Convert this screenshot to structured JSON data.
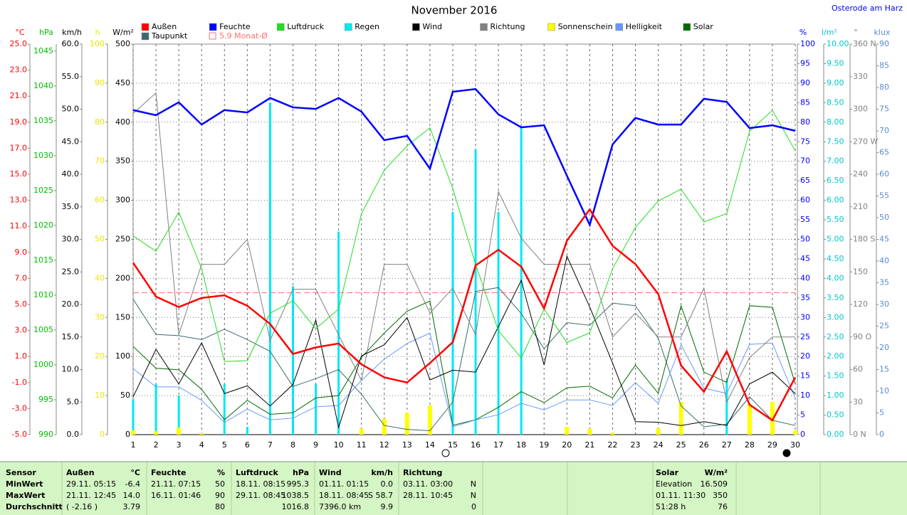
{
  "chart_data": {
    "type": "line",
    "title": "November 2016",
    "station": "Osterode am Harz",
    "x": [
      1,
      2,
      3,
      4,
      5,
      6,
      7,
      8,
      9,
      10,
      11,
      12,
      13,
      14,
      15,
      16,
      17,
      18,
      19,
      20,
      21,
      22,
      23,
      24,
      25,
      26,
      27,
      28,
      29,
      30
    ],
    "xlim": [
      1,
      30
    ],
    "xticks": [
      1,
      2,
      3,
      4,
      5,
      6,
      7,
      8,
      9,
      10,
      11,
      12,
      13,
      14,
      15,
      16,
      17,
      18,
      19,
      20,
      21,
      22,
      23,
      24,
      25,
      26,
      27,
      28,
      29,
      30
    ],
    "grid": true,
    "axes": [
      {
        "unit": "°C",
        "side": "left",
        "color": "#ff0000",
        "lim": [
          -5,
          25
        ],
        "ticks": [
          {
            "value": -5,
            "label": "-5.0"
          },
          {
            "value": -3,
            "label": "-3.0"
          },
          {
            "value": -1,
            "label": "-1.0"
          },
          {
            "value": 1,
            "label": "1.0"
          },
          {
            "value": 3,
            "label": "3.0"
          },
          {
            "value": 5,
            "label": "5.0"
          },
          {
            "value": 7,
            "label": "7.0"
          },
          {
            "value": 9,
            "label": "9.0"
          },
          {
            "value": 11,
            "label": "11.0"
          },
          {
            "value": 13,
            "label": "13.0"
          },
          {
            "value": 15,
            "label": "15.0"
          },
          {
            "value": 17,
            "label": "17.0"
          },
          {
            "value": 19,
            "label": "19.0"
          },
          {
            "value": 21,
            "label": "21.0"
          },
          {
            "value": 23,
            "label": "23.0"
          },
          {
            "value": 25,
            "label": "25.0"
          }
        ]
      },
      {
        "unit": "hPa",
        "side": "left",
        "color": "#00c000",
        "lim": [
          990,
          1046
        ],
        "ticks": [
          990,
          995,
          1000,
          1005,
          1010,
          1015,
          1020,
          1025,
          1030,
          1035,
          1040,
          1045
        ]
      },
      {
        "unit": "km/h",
        "side": "left",
        "color": "#000000",
        "lim": [
          0,
          60
        ],
        "ticks": [
          {
            "value": 0,
            "label": "0.0"
          },
          {
            "value": 5,
            "label": "5.0"
          },
          {
            "value": 10,
            "label": "10.0"
          },
          {
            "value": 15,
            "label": "15.0"
          },
          {
            "value": 20,
            "label": "20.0"
          },
          {
            "value": 25,
            "label": "25.0"
          },
          {
            "value": 30,
            "label": "30.0"
          },
          {
            "value": 35,
            "label": "35.0"
          },
          {
            "value": 40,
            "label": "40.0"
          },
          {
            "value": 45,
            "label": "45.0"
          },
          {
            "value": 50,
            "label": "50.0"
          },
          {
            "value": 55,
            "label": "55.0"
          },
          {
            "value": 60,
            "label": "60.0"
          }
        ]
      },
      {
        "unit": "h",
        "side": "left",
        "color": "#e8e800",
        "lim": [
          0,
          100
        ],
        "ticks": [
          0,
          10,
          20,
          30,
          40,
          50,
          60,
          70,
          80,
          90,
          100
        ]
      },
      {
        "unit": "W/m²",
        "side": "left",
        "color": "#000000",
        "lim": [
          0,
          500
        ],
        "ticks": [
          0,
          50,
          100,
          150,
          200,
          250,
          300,
          350,
          400,
          450,
          500
        ],
        "grid": true
      },
      {
        "unit": "%",
        "side": "right",
        "color": "#0000ff",
        "lim": [
          0,
          100
        ],
        "ticks": [
          0,
          5,
          10,
          15,
          20,
          25,
          30,
          35,
          40,
          45,
          50,
          55,
          60,
          65,
          70,
          75,
          80,
          85,
          90,
          95,
          100
        ]
      },
      {
        "unit": "l/m²",
        "side": "right",
        "color": "#00c8c8",
        "lim": [
          0,
          10
        ],
        "ticks": [
          {
            "value": 0,
            "label": "0.00"
          },
          {
            "value": 0.5,
            "label": "0.50"
          },
          {
            "value": 1,
            "label": "1.00"
          },
          {
            "value": 1.5,
            "label": "1.50"
          },
          {
            "value": 2,
            "label": "2.00"
          },
          {
            "value": 2.5,
            "label": "2.50"
          },
          {
            "value": 3,
            "label": "3.00"
          },
          {
            "value": 3.5,
            "label": "3.50"
          },
          {
            "value": 4,
            "label": "4.00"
          },
          {
            "value": 4.5,
            "label": "4.50"
          },
          {
            "value": 5,
            "label": "5.00"
          },
          {
            "value": 5.5,
            "label": "5.50"
          },
          {
            "value": 6,
            "label": "6.00"
          },
          {
            "value": 6.5,
            "label": "6.50"
          },
          {
            "value": 7,
            "label": "7.00"
          },
          {
            "value": 7.5,
            "label": "7.50"
          },
          {
            "value": 8,
            "label": "8.00"
          },
          {
            "value": 8.5,
            "label": "8.50"
          },
          {
            "value": 9,
            "label": "9.00"
          },
          {
            "value": 9.5,
            "label": "9.50"
          },
          {
            "value": 10,
            "label": "10.00"
          }
        ]
      },
      {
        "unit": "°",
        "side": "right",
        "color": "#808080",
        "lim": [
          0,
          360
        ],
        "ticks": [
          {
            "value": 0,
            "label": "0 N"
          },
          30,
          60,
          {
            "value": 90,
            "label": "90 O"
          },
          120,
          150,
          {
            "value": 180,
            "label": "180 S"
          },
          210,
          240,
          {
            "value": 270,
            "label": "270 W"
          },
          300,
          330,
          {
            "value": 360,
            "label": "360 N"
          }
        ]
      },
      {
        "unit": "klux",
        "side": "right",
        "color": "#5a8ad8",
        "lim": [
          0,
          90
        ],
        "ticks": [
          0,
          5,
          10,
          15,
          20,
          25,
          30,
          35,
          40,
          45,
          50,
          55,
          60,
          65,
          70,
          75,
          80,
          85,
          90
        ]
      }
    ],
    "series": [
      {
        "name": "Außen",
        "color": "#ff0000",
        "axis": 0,
        "style": "line",
        "width": 2.5,
        "values": [
          8.2,
          5.6,
          4.8,
          5.5,
          5.7,
          4.9,
          3.5,
          1.2,
          1.7,
          2.0,
          0.4,
          -0.6,
          -1.0,
          0.5,
          2.1,
          8.0,
          9.2,
          7.9,
          4.7,
          9.9,
          12.3,
          9.5,
          8.1,
          5.8,
          0.3,
          -1.7,
          1.4,
          -2.7,
          -3.9,
          -0.6
        ]
      },
      {
        "name": "Feuchte",
        "color": "#0000ff",
        "axis": 5,
        "style": "line",
        "width": 2.5,
        "values": [
          83.1,
          81.8,
          85.1,
          79.4,
          83.1,
          82.5,
          86.2,
          83.8,
          83.4,
          86.2,
          82.7,
          75.4,
          76.5,
          68.1,
          87.8,
          88.5,
          82.0,
          78.7,
          79.2,
          66.3,
          53.7,
          74.3,
          81.1,
          79.4,
          79.4,
          86.0,
          85.2,
          78.5,
          79.2,
          77.8
        ]
      },
      {
        "name": "Luftdruck",
        "color": "#22dd22",
        "axis": 1,
        "style": "line",
        "width": 1,
        "values": [
          1018.5,
          1016.3,
          1021.9,
          1013.8,
          1000.5,
          1000.6,
          1007.4,
          1009.2,
          1005.2,
          1008.0,
          1021.7,
          1027.9,
          1031.4,
          1034.0,
          1025.3,
          1014.4,
          1004.9,
          1001.0,
          1008.0,
          1003.2,
          1004.6,
          1013.8,
          1019.7,
          1023.5,
          1025.2,
          1020.5,
          1021.7,
          1033.5,
          1036.5,
          1030.7
        ]
      },
      {
        "name": "Regen",
        "color": "#00e8f0",
        "axis": 6,
        "style": "bar",
        "width": 3,
        "values": [
          0.9,
          1.3,
          1.0,
          0,
          1.3,
          0.2,
          8.5,
          3.8,
          1.3,
          5.2,
          0,
          0,
          0,
          0,
          5.7,
          7.3,
          5.7,
          7.9,
          0,
          0,
          0,
          0,
          0,
          0,
          0,
          0,
          1.4,
          0,
          0,
          0
        ]
      },
      {
        "name": "Wind",
        "color": "#000000",
        "axis": 2,
        "style": "line",
        "width": 1,
        "values": [
          5.8,
          13.1,
          7.8,
          14.1,
          6.3,
          7.5,
          4.4,
          7.7,
          17.6,
          1.1,
          12.1,
          13.8,
          18.0,
          8.4,
          9.9,
          9.6,
          16.6,
          23.7,
          10.7,
          27.4,
          19.6,
          11.0,
          2.0,
          1.9,
          1.4,
          2.0,
          1.4,
          7.8,
          9.6,
          6.3
        ]
      },
      {
        "name": "Richtung",
        "color": "#808080",
        "axis": 7,
        "style": "line",
        "width": 1,
        "values": [
          296,
          315,
          92,
          157,
          157,
          180,
          87,
          134,
          134,
          92,
          50,
          157,
          157,
          112,
          135,
          92,
          224,
          181,
          157,
          157,
          157,
          90,
          112,
          90,
          90,
          135,
          30,
          71,
          90,
          90
        ]
      },
      {
        "name": "Sonnenschein",
        "color": "#ffff00",
        "axis": 3,
        "style": "bar",
        "width": 6,
        "values": [
          1.1,
          0.9,
          1.8,
          0.4,
          0,
          0,
          0,
          0,
          0,
          0,
          1.5,
          4.0,
          5.6,
          7.5,
          0,
          0,
          0,
          0,
          0,
          2.0,
          1.5,
          0.5,
          0,
          1.6,
          8.4,
          0,
          0,
          7.8,
          8.4,
          1.1
        ]
      },
      {
        "name": "Helligkeit",
        "color": "#6699ff",
        "axis": 8,
        "style": "line",
        "width": 1,
        "values": [
          15.2,
          11.0,
          11.0,
          7.9,
          2.8,
          5.9,
          3.4,
          3.8,
          6.4,
          6.7,
          12.5,
          17.4,
          21.0,
          23.4,
          1.8,
          3.4,
          4.6,
          7.2,
          5.7,
          8.0,
          8.0,
          6.7,
          12.0,
          7.2,
          20.7,
          10.7,
          9.5,
          20.8,
          21.1,
          8.4
        ]
      },
      {
        "name": "Solar",
        "color": "#006a00",
        "axis": 4,
        "style": "line",
        "width": 1,
        "values": [
          113,
          85,
          83,
          58,
          19,
          44,
          26,
          28,
          47,
          50,
          99,
          130,
          158,
          171,
          12,
          19,
          35,
          55,
          41,
          60,
          62,
          47,
          89,
          53,
          165,
          80,
          67,
          165,
          163,
          65
        ]
      },
      {
        "name": "Taupunkt",
        "color": "#3a6a6a",
        "axis": 0,
        "style": "line",
        "width": 1,
        "values": [
          5.4,
          2.7,
          2.6,
          2.3,
          3.1,
          2.3,
          1.4,
          -1.3,
          -0.7,
          0.0,
          -1.9,
          -4.3,
          -4.6,
          -4.7,
          -2.5,
          6.0,
          6.3,
          4.3,
          1.6,
          3.6,
          3.4,
          5.1,
          4.9,
          2.4,
          -2.8,
          -4.4,
          -4.2,
          -2.1,
          -3.9,
          -4.3
        ]
      }
    ],
    "reference": {
      "value": 5.9,
      "label": "5.9 Monat-Ø",
      "axis": 0,
      "color": "#ff7070"
    }
  },
  "table": {
    "header": "Sensor",
    "row_labels": [
      "MinWert",
      "MaxWert",
      "Durchschnitt"
    ],
    "groups": [
      {
        "name": "Außen",
        "unit": "°C",
        "rows": [
          [
            "29.11. 05:15",
            "-6.4"
          ],
          [
            "21.11. 12:45",
            "14.0"
          ],
          [
            "( -2.16 )",
            "3.79"
          ]
        ]
      },
      {
        "name": "Feuchte",
        "unit": "%",
        "rows": [
          [
            "21.11. 07:15",
            "50"
          ],
          [
            "16.11. 01:46",
            "90"
          ],
          [
            "80"
          ]
        ]
      },
      {
        "name": "Luftdruck",
        "unit": "hPa",
        "rows": [
          [
            "18.11. 08:15",
            "995.3"
          ],
          [
            "29.11. 08:45",
            "1038.5"
          ],
          [
            "1016.8"
          ]
        ]
      },
      {
        "name": "Wind",
        "unit": "km/h",
        "rows": [
          [
            "01.11. 01:15",
            "0.0"
          ],
          [
            "18.11. 08:45",
            "S 58.7"
          ],
          [
            "7396.0 km",
            "9.9"
          ]
        ]
      },
      {
        "name": "Richtung",
        "rows": [
          [
            "03.11. 03:00",
            "N"
          ],
          [
            "28.11. 10:45",
            "N"
          ],
          [
            "0"
          ]
        ]
      },
      {
        "name": "Solar",
        "unit": "W/m²",
        "rows": [
          [
            "Elevation",
            "16.509"
          ],
          [
            "01.11. 11:30",
            "350"
          ],
          [
            "51:28 h",
            "76"
          ]
        ]
      }
    ]
  }
}
